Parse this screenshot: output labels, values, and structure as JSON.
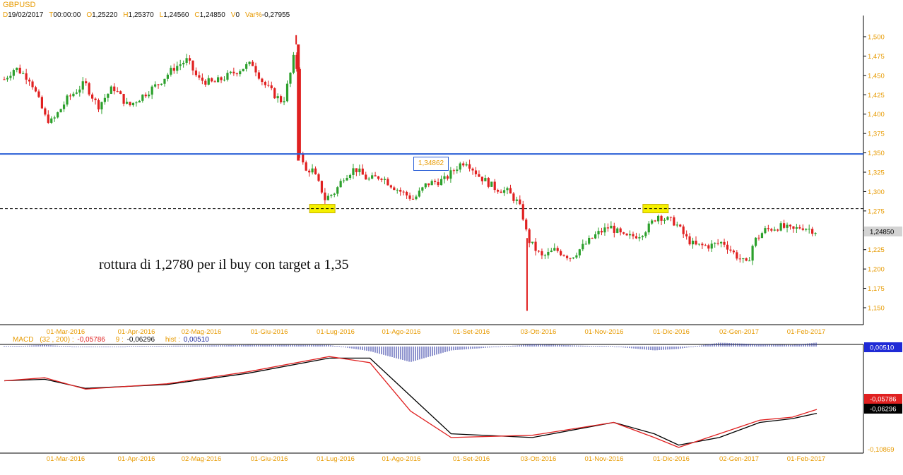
{
  "header": {
    "symbol": "GBPUSD",
    "fields": [
      {
        "key": "D",
        "value": "19/02/2017"
      },
      {
        "key": "T",
        "value": "00:00:00"
      },
      {
        "key": "O",
        "value": "1,25220"
      },
      {
        "key": "H",
        "value": "1,25370"
      },
      {
        "key": "L",
        "value": "1,24560"
      },
      {
        "key": "C",
        "value": "1,24850"
      },
      {
        "key": "V",
        "value": "0"
      },
      {
        "key": "Var%",
        "value": "-0,27955"
      }
    ]
  },
  "colors": {
    "label_orange": "#e79a00",
    "up": "#2ca02c",
    "down": "#e02020",
    "level_line": "#2a5fd6",
    "macd_line": "#000000",
    "signal_line": "#e02020",
    "hist": "#1f2a9c",
    "highlight": "#f5f000"
  },
  "chart_data": [
    {
      "type": "candlestick",
      "title": "GBPUSD",
      "x_ticks": [
        "01-Mar-2016",
        "01-Apr-2016",
        "02-Mag-2016",
        "01-Giu-2016",
        "01-Lug-2016",
        "01-Ago-2016",
        "01-Set-2016",
        "03-Ott-2016",
        "01-Nov-2016",
        "01-Dic-2016",
        "02-Gen-2017",
        "01-Feb-2017"
      ],
      "y_ticks": [
        "1,500",
        "1,475",
        "1,450",
        "1,425",
        "1,400",
        "1,375",
        "1,350",
        "1,325",
        "1,300",
        "1,275",
        "1,250",
        "1,225",
        "1,200",
        "1,175",
        "1,150"
      ],
      "ylim": [
        1.135,
        1.515
      ],
      "last_price_label": "1,24850",
      "annotation": "rottura di 1,2780 per il buy con target a 1,35",
      "price_box_label": "1,34862",
      "levels": [
        {
          "value": 1.3486,
          "style": "solid"
        },
        {
          "value": 1.278,
          "style": "dashed"
        }
      ],
      "close_path": [
        [
          "2016-02-10",
          1.445
        ],
        [
          "2016-02-15",
          1.46
        ],
        [
          "2016-02-22",
          1.445
        ],
        [
          "2016-02-29",
          1.395
        ],
        [
          "2016-03-03",
          1.39
        ],
        [
          "2016-03-10",
          1.42
        ],
        [
          "2016-03-18",
          1.44
        ],
        [
          "2016-03-24",
          1.41
        ],
        [
          "2016-03-31",
          1.435
        ],
        [
          "2016-04-07",
          1.41
        ],
        [
          "2016-04-14",
          1.425
        ],
        [
          "2016-04-21",
          1.44
        ],
        [
          "2016-04-28",
          1.46
        ],
        [
          "2016-05-04",
          1.47
        ],
        [
          "2016-05-09",
          1.445
        ],
        [
          "2016-05-16",
          1.44
        ],
        [
          "2016-05-23",
          1.45
        ],
        [
          "2016-05-31",
          1.462
        ],
        [
          "2016-06-03",
          1.465
        ],
        [
          "2016-06-08",
          1.44
        ],
        [
          "2016-06-13",
          1.425
        ],
        [
          "2016-06-17",
          1.415
        ],
        [
          "2016-06-21",
          1.46
        ],
        [
          "2016-06-23",
          1.49
        ],
        [
          "2016-06-24",
          1.36
        ],
        [
          "2016-06-27",
          1.325
        ],
        [
          "2016-06-30",
          1.33
        ],
        [
          "2016-07-05",
          1.3
        ],
        [
          "2016-07-06",
          1.29
        ],
        [
          "2016-07-11",
          1.3
        ],
        [
          "2016-07-15",
          1.32
        ],
        [
          "2016-07-20",
          1.33
        ],
        [
          "2016-07-26",
          1.315
        ],
        [
          "2016-08-01",
          1.32
        ],
        [
          "2016-08-05",
          1.31
        ],
        [
          "2016-08-10",
          1.3
        ],
        [
          "2016-08-16",
          1.29
        ],
        [
          "2016-08-22",
          1.31
        ],
        [
          "2016-08-30",
          1.315
        ],
        [
          "2016-09-06",
          1.335
        ],
        [
          "2016-09-09",
          1.34
        ],
        [
          "2016-09-15",
          1.32
        ],
        [
          "2016-09-22",
          1.305
        ],
        [
          "2016-09-28",
          1.3
        ],
        [
          "2016-10-03",
          1.285
        ],
        [
          "2016-10-06",
          1.26
        ],
        [
          "2016-10-07",
          1.24
        ],
        [
          "2016-10-11",
          1.225
        ],
        [
          "2016-10-14",
          1.215
        ],
        [
          "2016-10-20",
          1.225
        ],
        [
          "2016-10-27",
          1.215
        ],
        [
          "2016-11-02",
          1.23
        ],
        [
          "2016-11-08",
          1.245
        ],
        [
          "2016-11-14",
          1.255
        ],
        [
          "2016-11-21",
          1.24
        ],
        [
          "2016-11-28",
          1.245
        ],
        [
          "2016-12-02",
          1.255
        ],
        [
          "2016-12-06",
          1.27
        ],
        [
          "2016-12-09",
          1.265
        ],
        [
          "2016-12-14",
          1.26
        ],
        [
          "2016-12-19",
          1.24
        ],
        [
          "2016-12-23",
          1.23
        ],
        [
          "2016-12-30",
          1.23
        ],
        [
          "2017-01-05",
          1.235
        ],
        [
          "2017-01-10",
          1.22
        ],
        [
          "2017-01-16",
          1.205
        ],
        [
          "2017-01-19",
          1.235
        ],
        [
          "2017-01-24",
          1.25
        ],
        [
          "2017-01-31",
          1.255
        ],
        [
          "2017-02-06",
          1.25
        ],
        [
          "2017-02-10",
          1.255
        ],
        [
          "2017-02-17",
          1.2485
        ]
      ],
      "spikes": [
        {
          "date": "2016-06-23",
          "high": 1.502
        },
        {
          "date": "2016-10-07",
          "low": 1.146
        }
      ],
      "highlights": [
        {
          "date": "2016-07-05",
          "value": 1.278
        },
        {
          "date": "2016-12-05",
          "value": 1.278
        }
      ]
    },
    {
      "type": "line",
      "title": "MACD",
      "params": "(32 , 200) :",
      "macd_value": "-0,05786",
      "signal_label": "9 :",
      "signal_value": "-0,06296",
      "hist_label": "hist :",
      "hist_value": "0,00510",
      "ylim_bottom_label": "-0,10869",
      "x_ticks": [
        "01-Mar-2016",
        "01-Apr-2016",
        "02-Mag-2016",
        "01-Giu-2016",
        "01-Lug-2016",
        "01-Ago-2016",
        "01-Set-2016",
        "03-Ott-2016",
        "01-Nov-2016",
        "01-Dic-2016",
        "02-Gen-2017",
        "01-Feb-2017"
      ],
      "series": [
        {
          "values": [
            [
              0,
              -0.02
            ],
            [
              0.05,
              -0.018
            ],
            [
              0.1,
              -0.03
            ],
            [
              0.2,
              -0.025
            ],
            [
              0.3,
              -0.01
            ],
            [
              0.4,
              0.01
            ],
            [
              0.45,
              0.01
            ],
            [
              0.5,
              -0.04
            ],
            [
              0.55,
              -0.09
            ],
            [
              0.65,
              -0.095
            ],
            [
              0.75,
              -0.075
            ],
            [
              0.8,
              -0.09
            ],
            [
              0.83,
              -0.105
            ],
            [
              0.88,
              -0.095
            ],
            [
              0.93,
              -0.075
            ],
            [
              0.97,
              -0.07
            ],
            [
              1.0,
              -0.06296
            ]
          ]
        },
        {
          "values": [
            [
              0,
              -0.02
            ],
            [
              0.05,
              -0.016
            ],
            [
              0.1,
              -0.031
            ],
            [
              0.2,
              -0.024
            ],
            [
              0.3,
              -0.008
            ],
            [
              0.4,
              0.012
            ],
            [
              0.45,
              0.004
            ],
            [
              0.5,
              -0.06
            ],
            [
              0.55,
              -0.095
            ],
            [
              0.65,
              -0.092
            ],
            [
              0.75,
              -0.075
            ],
            [
              0.8,
              -0.095
            ],
            [
              0.83,
              -0.108
            ],
            [
              0.88,
              -0.09
            ],
            [
              0.93,
              -0.072
            ],
            [
              0.97,
              -0.068
            ],
            [
              1.0,
              -0.05786
            ]
          ]
        }
      ]
    }
  ]
}
